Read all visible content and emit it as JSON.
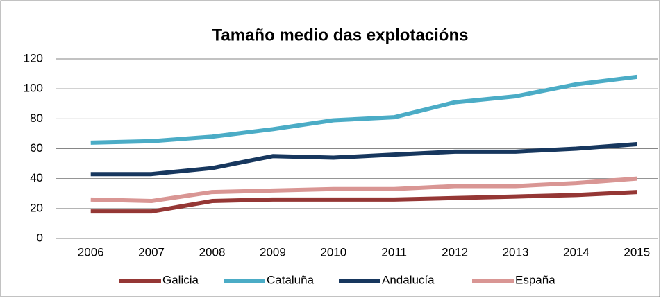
{
  "chart_data": {
    "type": "line",
    "title": "Tamaño medio das explotacións",
    "categories": [
      "2006",
      "2007",
      "2008",
      "2009",
      "2010",
      "2011",
      "2012",
      "2013",
      "2014",
      "2015"
    ],
    "series": [
      {
        "name": "Galicia",
        "color": "#953735",
        "values": [
          18,
          18,
          25,
          26,
          26,
          26,
          27,
          28,
          29,
          31
        ]
      },
      {
        "name": "Cataluña",
        "color": "#4bacc6",
        "values": [
          64,
          65,
          68,
          73,
          79,
          81,
          91,
          95,
          103,
          108
        ]
      },
      {
        "name": "Andalucía",
        "color": "#17375e",
        "values": [
          43,
          43,
          47,
          55,
          54,
          56,
          58,
          58,
          60,
          63
        ]
      },
      {
        "name": "España",
        "color": "#d99694",
        "values": [
          26,
          25,
          31,
          32,
          33,
          33,
          35,
          35,
          37,
          40
        ]
      }
    ],
    "ylim": [
      0,
      120
    ],
    "yticks": [
      0,
      20,
      40,
      60,
      80,
      100,
      120
    ],
    "grid": true,
    "legend": "bottom"
  }
}
